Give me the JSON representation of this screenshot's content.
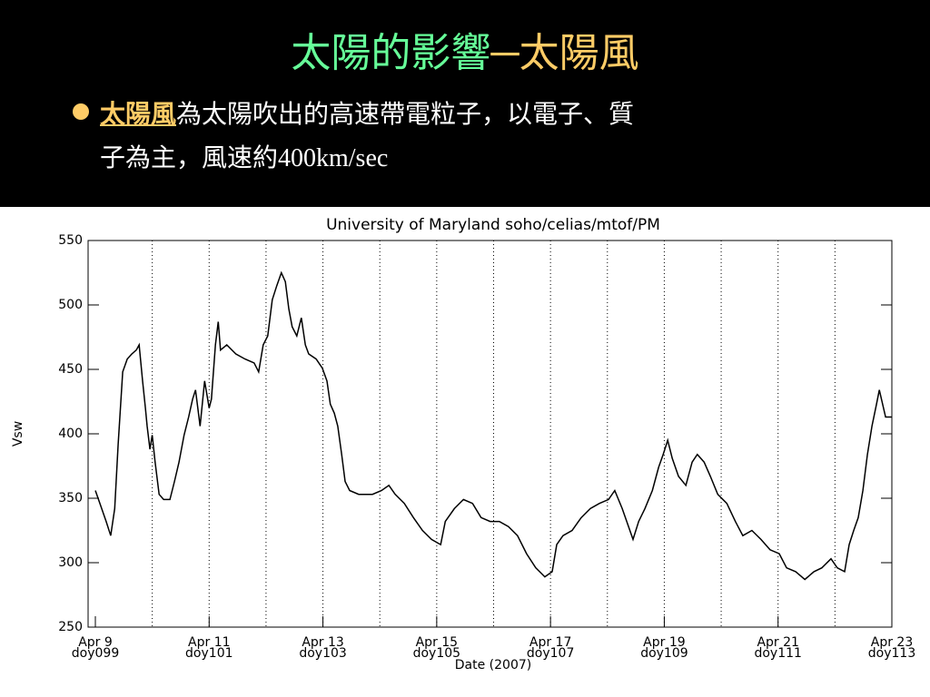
{
  "slide": {
    "title_green": "太陽的影響",
    "title_yellow": "─太陽風",
    "bullet": {
      "term": "太陽風",
      "line1": "為太陽吹出的高速帶電粒子，以電子、質",
      "line2": "子為主，風速約400km/sec"
    }
  },
  "chart_data": {
    "type": "line",
    "title": "University of Maryland  soho/celias/mtof/PM",
    "y_label": "Vsw",
    "x_label": "Date (2007)",
    "xlim": [
      9,
      23
    ],
    "ylim": [
      250,
      550
    ],
    "yticks": [
      250,
      300,
      350,
      400,
      450,
      500,
      550
    ],
    "xticks": [
      {
        "value": 9,
        "label": "Apr 9\ndoy099"
      },
      {
        "value": 11,
        "label": "Apr 11\ndoy101"
      },
      {
        "value": 13,
        "label": "Apr 13\ndoy103"
      },
      {
        "value": 15,
        "label": "Apr 15\ndoy105"
      },
      {
        "value": 17,
        "label": "Apr 17\ndoy107"
      },
      {
        "value": 19,
        "label": "Apr 19\ndoy109"
      },
      {
        "value": 21,
        "label": "Apr 21\ndoy111"
      },
      {
        "value": 23,
        "label": "Apr 23\ndoy113"
      }
    ],
    "xgrid": [
      10,
      11,
      12,
      13,
      14,
      15,
      16,
      17,
      18,
      19,
      20,
      21,
      22
    ],
    "color": "#000000",
    "x": [
      9.0,
      9.08,
      9.19,
      9.27,
      9.34,
      9.4,
      9.48,
      9.56,
      9.64,
      9.72,
      9.77,
      9.83,
      9.88,
      9.91,
      9.96,
      10.0,
      10.05,
      10.12,
      10.2,
      10.31,
      10.39,
      10.47,
      10.56,
      10.64,
      10.71,
      10.76,
      10.84,
      10.92,
      11.0,
      11.04,
      11.11,
      11.16,
      11.2,
      11.31,
      11.47,
      11.63,
      11.79,
      11.87,
      11.95,
      12.03,
      12.11,
      12.19,
      12.27,
      12.34,
      12.4,
      12.46,
      12.54,
      12.62,
      12.69,
      12.75,
      12.88,
      12.99,
      13.07,
      13.13,
      13.2,
      13.26,
      13.33,
      13.39,
      13.47,
      13.63,
      13.87,
      14.03,
      14.16,
      14.27,
      14.43,
      14.59,
      14.75,
      14.91,
      15.07,
      15.15,
      15.31,
      15.47,
      15.63,
      15.78,
      15.94,
      16.1,
      16.26,
      16.42,
      16.58,
      16.74,
      16.9,
      17.03,
      17.11,
      17.22,
      17.38,
      17.54,
      17.7,
      17.86,
      18.02,
      18.13,
      18.26,
      18.34,
      18.45,
      18.55,
      18.66,
      18.79,
      18.9,
      18.98,
      19.06,
      19.14,
      19.25,
      19.38,
      19.49,
      19.58,
      19.7,
      19.81,
      19.94,
      20.1,
      20.25,
      20.38,
      20.54,
      20.7,
      20.86,
      21.02,
      21.15,
      21.31,
      21.47,
      21.63,
      21.77,
      21.93,
      22.04,
      22.17,
      22.25,
      22.33,
      22.41,
      22.49,
      22.57,
      22.65,
      22.73,
      22.78,
      22.89,
      23.0
    ],
    "values": [
      356,
      346,
      332,
      321,
      342,
      392,
      448,
      458,
      462,
      465,
      469,
      441,
      420,
      406,
      388,
      399,
      378,
      353,
      349,
      349,
      363,
      378,
      399,
      413,
      427,
      434,
      406,
      441,
      420,
      427,
      469,
      487,
      465,
      469,
      462,
      458,
      455,
      448,
      469,
      476,
      504,
      515,
      525,
      518,
      497,
      483,
      476,
      490,
      469,
      462,
      458,
      451,
      441,
      423,
      416,
      406,
      384,
      363,
      356,
      353,
      353,
      356,
      360,
      353,
      346,
      335,
      325,
      318,
      314,
      332,
      342,
      349,
      346,
      335,
      332,
      332,
      328,
      321,
      307,
      296,
      289,
      293,
      314,
      321,
      325,
      335,
      342,
      346,
      349,
      356,
      342,
      332,
      318,
      332,
      342,
      356,
      374,
      384,
      395,
      381,
      367,
      360,
      378,
      384,
      378,
      367,
      353,
      346,
      332,
      321,
      325,
      318,
      310,
      307,
      296,
      293,
      287,
      293,
      296,
      303,
      296,
      293,
      314,
      325,
      335,
      356,
      384,
      406,
      423,
      434,
      413,
      413
    ]
  }
}
